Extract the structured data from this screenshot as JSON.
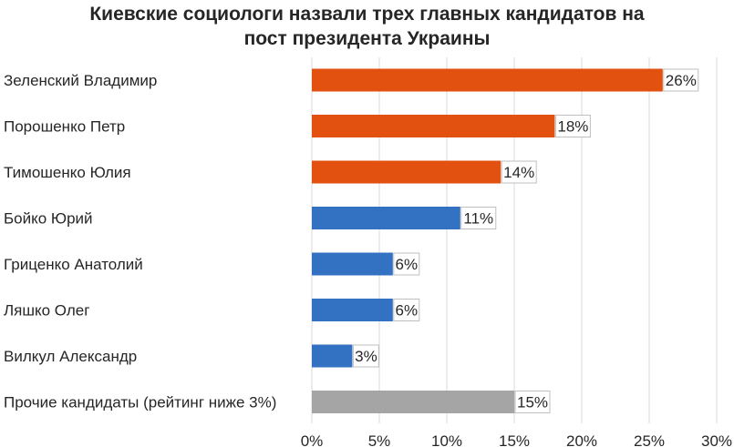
{
  "chart_data": {
    "type": "bar",
    "orientation": "horizontal",
    "title": [
      "Киевские социологи назвали трех главных кандидатов на",
      "пост президента Украины"
    ],
    "categories": [
      "Зеленский Владимир",
      "Порошенко Петр",
      "Тимошенко Юлия",
      "Бойко Юрий",
      "Гриценко Анатолий",
      "Ляшко Олег",
      "Вилкул Александр",
      "Прочие кандидаты (рейтинг ниже 3%)"
    ],
    "values": [
      26,
      18,
      14,
      11,
      6,
      6,
      3,
      15
    ],
    "data_labels": [
      "26%",
      "18%",
      "14%",
      "11%",
      "6%",
      "6%",
      "3%",
      "15%"
    ],
    "bar_colors": [
      "#E2510F",
      "#E2510F",
      "#E2510F",
      "#3371C2",
      "#3371C2",
      "#3371C2",
      "#3371C2",
      "#A5A5A5"
    ],
    "xlim": [
      0,
      30
    ],
    "x_ticks": [
      0,
      5,
      10,
      15,
      20,
      25,
      30
    ],
    "x_tick_labels": [
      "0%",
      "5%",
      "10%",
      "15%",
      "20%",
      "25%",
      "30%"
    ],
    "grid": true,
    "xlabel": "",
    "ylabel": ""
  }
}
